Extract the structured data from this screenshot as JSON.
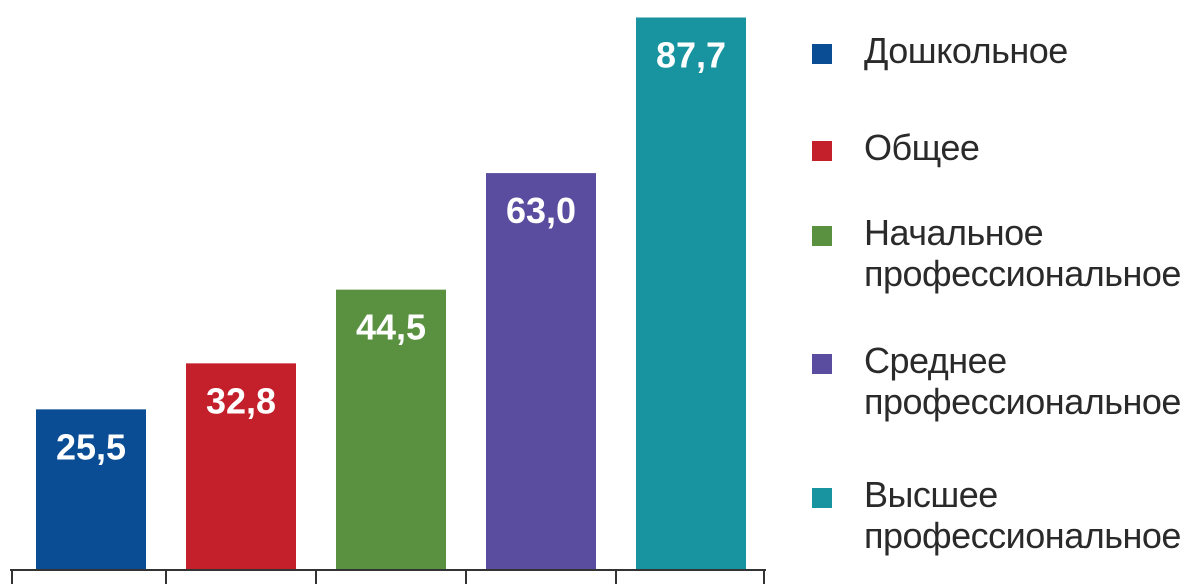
{
  "chart_data": {
    "type": "bar",
    "categories": [
      "Дошкольное",
      "Общее",
      "Начальное профессиональное",
      "Среднее профессиональное",
      "Высшее профессиональное"
    ],
    "values": [
      25.5,
      32.8,
      44.5,
      63.0,
      87.7
    ],
    "value_labels": [
      "25,5",
      "32,8",
      "44,5",
      "63,0",
      "87,7"
    ],
    "colors": [
      "#0a4d94",
      "#c4202b",
      "#5a9140",
      "#5a4d9f",
      "#17949f"
    ],
    "title": "",
    "xlabel": "",
    "ylabel": "",
    "ylim": [
      0,
      92
    ],
    "grid": false,
    "legend_position": "right"
  },
  "legend": [
    {
      "lines": [
        "Дошкольное"
      ],
      "color": "#0a4d94"
    },
    {
      "lines": [
        "Общее"
      ],
      "color": "#c4202b"
    },
    {
      "lines": [
        "Начальное",
        "профессиональное"
      ],
      "color": "#5a9140"
    },
    {
      "lines": [
        "Среднее",
        "профессиональное"
      ],
      "color": "#5a4d9f"
    },
    {
      "lines": [
        "Высшее",
        "профессиональное"
      ],
      "color": "#17949f"
    }
  ]
}
